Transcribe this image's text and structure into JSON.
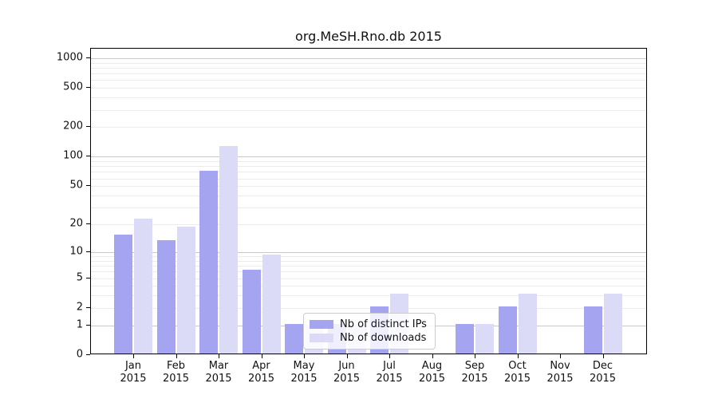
{
  "figure": {
    "title": "org.MeSH.Rno.db 2015"
  },
  "chart_data": {
    "type": "bar",
    "title": "org.MeSH.Rno.db 2015",
    "categories": [
      "Jan 2015",
      "Feb 2015",
      "Mar 2015",
      "Apr 2015",
      "May 2015",
      "Jun 2015",
      "Jul 2015",
      "Aug 2015",
      "Sep 2015",
      "Oct 2015",
      "Nov 2015",
      "Dec 2015"
    ],
    "category_month": [
      "Jan",
      "Feb",
      "Mar",
      "Apr",
      "May",
      "Jun",
      "Jul",
      "Aug",
      "Sep",
      "Oct",
      "Nov",
      "Dec"
    ],
    "category_year": "2015",
    "series": [
      {
        "name": "Nb of distinct IPs",
        "color": "#a4a4f0",
        "values": [
          15,
          13,
          69,
          6,
          1,
          1,
          2,
          0,
          1,
          2,
          0,
          2
        ]
      },
      {
        "name": "Nb of downloads",
        "color": "#dbdbf8",
        "values": [
          22,
          18,
          123,
          9,
          1,
          1,
          3,
          0,
          1,
          3,
          0,
          3
        ]
      }
    ],
    "xlabel": "",
    "ylabel": "",
    "y_scale": "log10(1+x)",
    "y_ticks": [
      0,
      1,
      2,
      5,
      10,
      20,
      50,
      100,
      200,
      500,
      1000
    ],
    "ylim": [
      0,
      1000
    ],
    "grid": "horizontal",
    "legend_position": "inside-bottom-center"
  },
  "legend": {
    "items": [
      {
        "label": "Nb of distinct IPs"
      },
      {
        "label": "Nb of downloads"
      }
    ]
  },
  "colors": {
    "bar_dark": "#a4a4f0",
    "bar_light": "#dbdbf8",
    "major_grid": "#c9c9c9",
    "minor_grid": "#ececec",
    "axis": "#000000",
    "legend_border": "#cccccc"
  }
}
